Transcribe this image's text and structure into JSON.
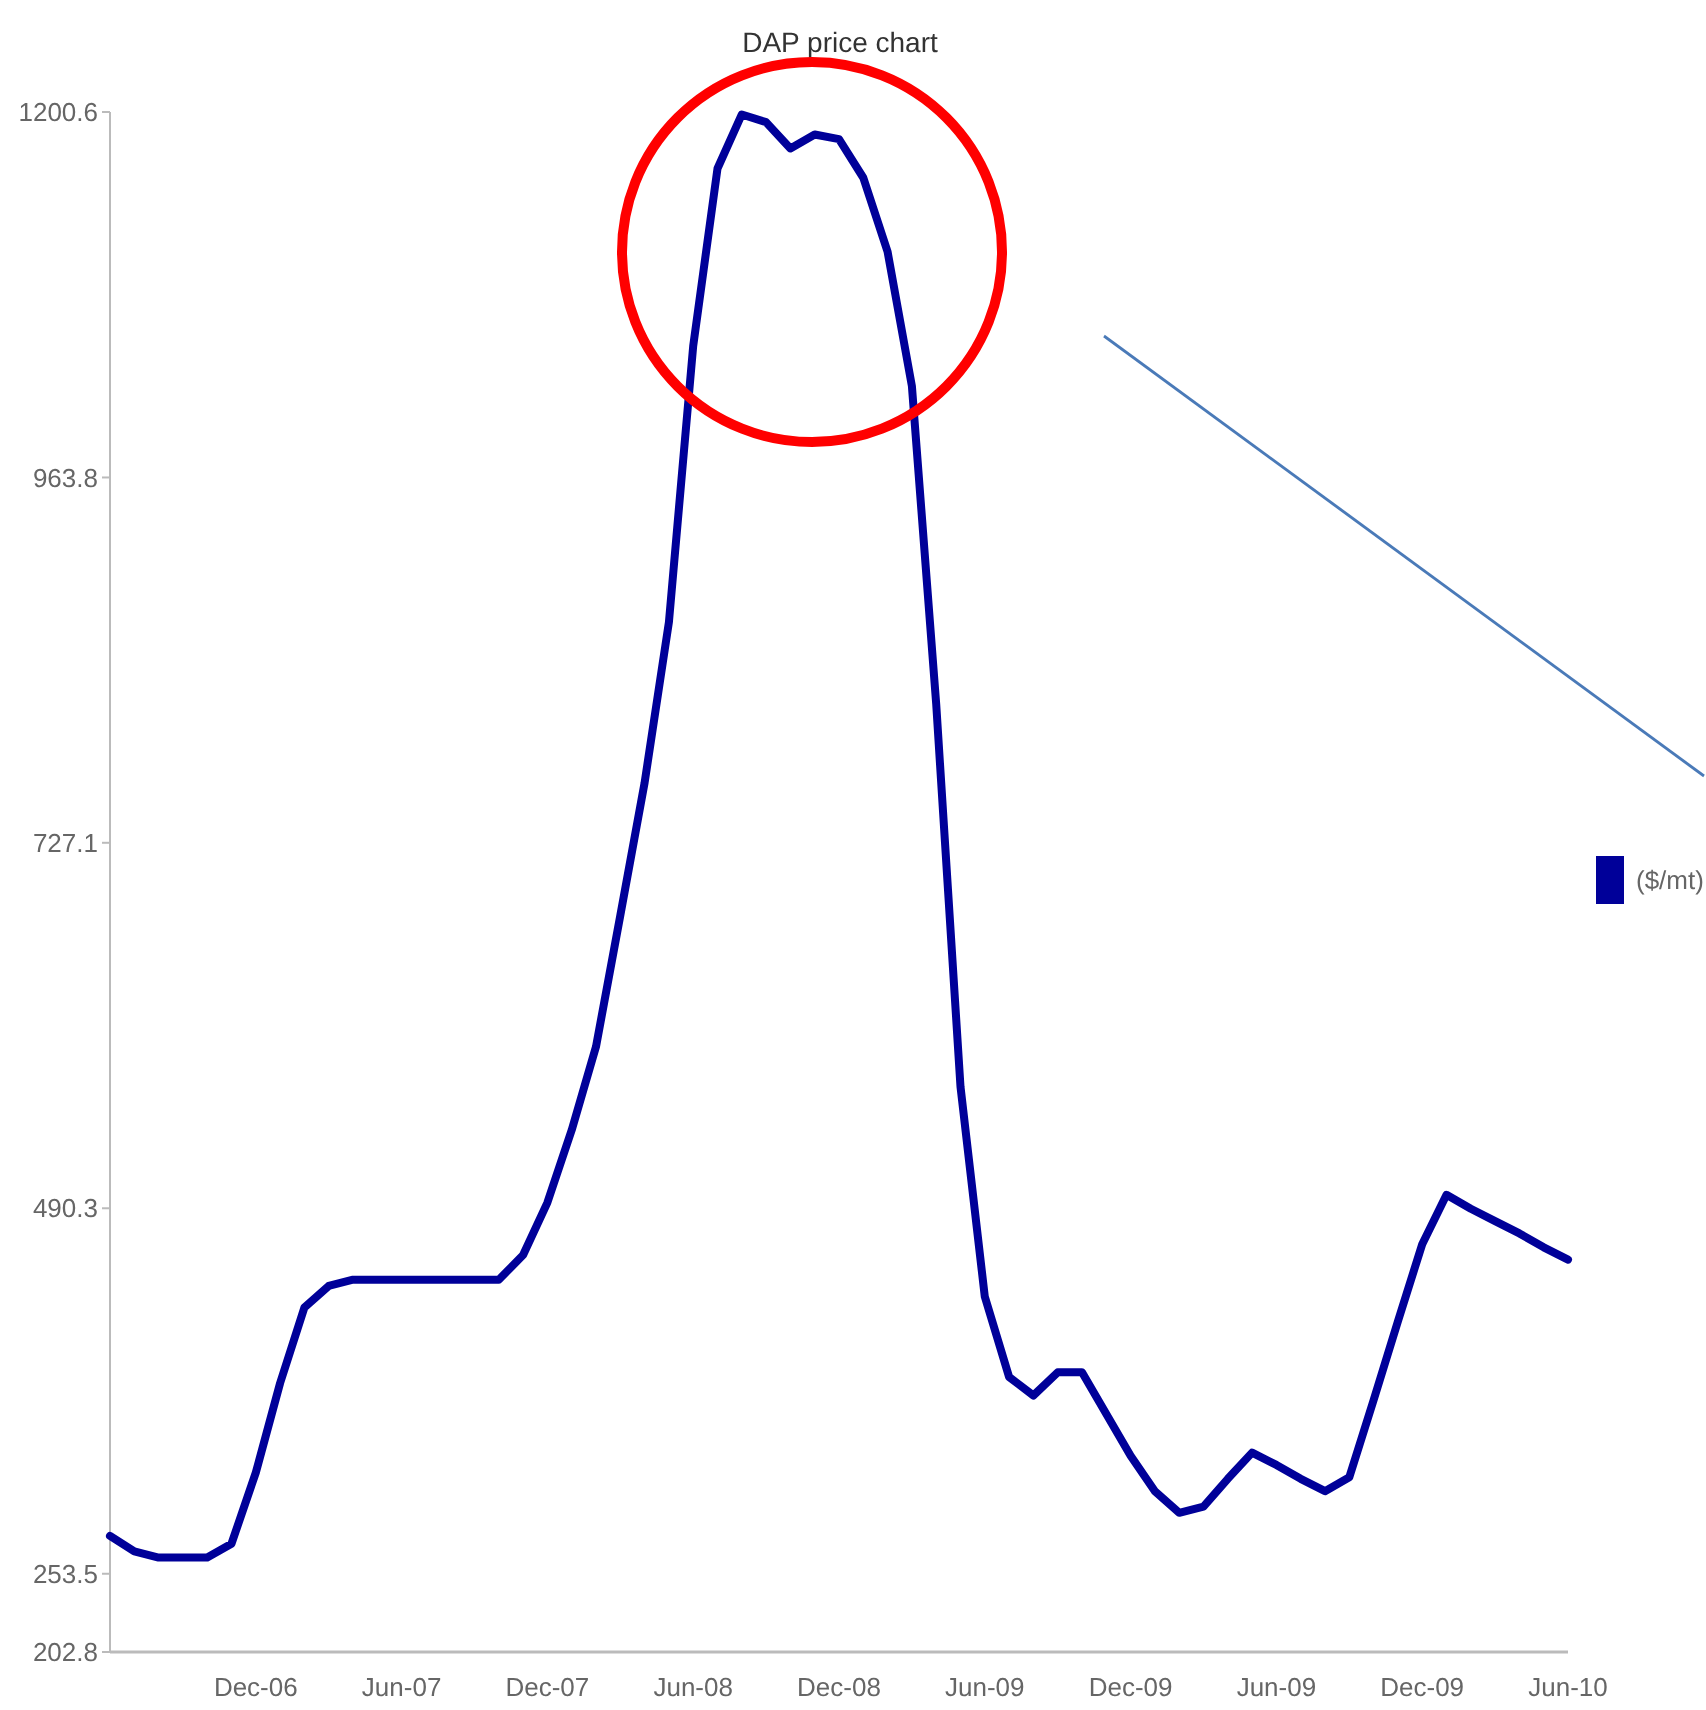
{
  "chart_data": {
    "type": "line",
    "title": "DAP price chart",
    "categories": [
      null,
      null,
      null,
      null,
      null,
      null,
      "Dec-06",
      null,
      null,
      null,
      null,
      null,
      "Jun-07",
      null,
      null,
      null,
      null,
      null,
      "Dec-07",
      null,
      null,
      null,
      null,
      null,
      "Jun-08",
      null,
      null,
      null,
      null,
      null,
      "Dec-08",
      null,
      null,
      null,
      null,
      null,
      "Jun-09",
      null,
      null,
      null,
      null,
      null,
      "Dec-09",
      null,
      null,
      null,
      null,
      null,
      "Jun-09",
      null,
      null,
      null,
      null,
      null,
      "Dec-09",
      null,
      null,
      null,
      null,
      null,
      "Jun-10"
    ],
    "series": [
      {
        "name": "($/mt)",
        "color": "#000099",
        "values": [
          278,
          268,
          264,
          264,
          264,
          273,
          319,
          377,
          426,
          440,
          444,
          444,
          444,
          444,
          444,
          444,
          444,
          460,
          494,
          541,
          595,
          680,
          766,
          870,
          1049,
          1164,
          1199,
          1194,
          1177,
          1186,
          1183,
          1158,
          1110,
          1023,
          817,
          569,
          433,
          381,
          369,
          384,
          384,
          357,
          330,
          307,
          293,
          297,
          315,
          332,
          324,
          315,
          307,
          316,
          366,
          417,
          467,
          499,
          490,
          482,
          474,
          465,
          457
        ]
      }
    ],
    "ylim": [
      202.8,
      1200.6
    ],
    "yticks": [
      202.8,
      253.5,
      490.3,
      727.1,
      963.8,
      1200.6
    ],
    "grid": false,
    "legend": "right",
    "marker": "none",
    "line_style": "solid"
  }
}
